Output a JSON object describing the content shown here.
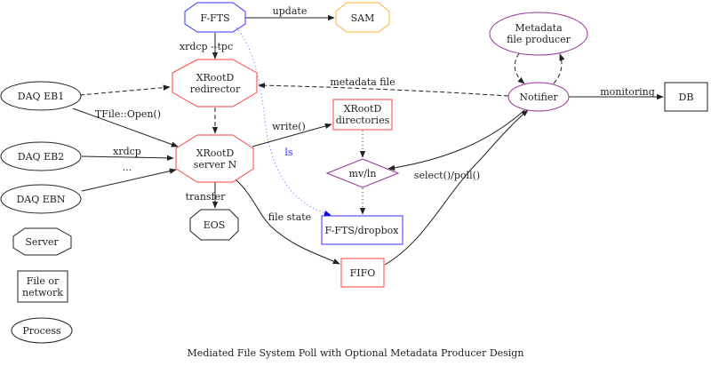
{
  "caption": "Mediated File System Poll with Optional Metadata Producer Design",
  "colors": {
    "server": "#ff4040",
    "fts": "#3333ff",
    "sam": "#ffb030",
    "process": "#993399",
    "default": "#222222"
  },
  "nodes": {
    "ffts": "F-FTS",
    "sam": "SAM",
    "redirector": [
      "XRootD",
      "redirector"
    ],
    "server": [
      "XRootD",
      "server N"
    ],
    "eb1": "DAQ EB1",
    "eb2": "DAQ EB2",
    "ebn": "DAQ EBN",
    "eos": "EOS",
    "dirs": [
      "XRootD",
      "directories"
    ],
    "mvln": "mv/ln",
    "dropbox": "F-FTS/dropbox",
    "fifo": "FIFO",
    "producer": [
      "Metadata",
      "file producer"
    ],
    "notifier": "Notifier",
    "db": "DB"
  },
  "legend": {
    "server": "Server",
    "file": [
      "File or",
      "network"
    ],
    "process": "Process"
  },
  "edges": {
    "update": "update",
    "xrdcp_tpc": "xrdcp --tpc",
    "metadata_file": "metadata file",
    "monitoring": "monitoring",
    "tfile_open": "TFile::Open()",
    "xrdcp": "xrdcp",
    "ellipsis": "...",
    "write": "write()",
    "ls": "ls",
    "transfer": "transfer",
    "file_state": "file state",
    "select_poll": "select()/poll()"
  }
}
